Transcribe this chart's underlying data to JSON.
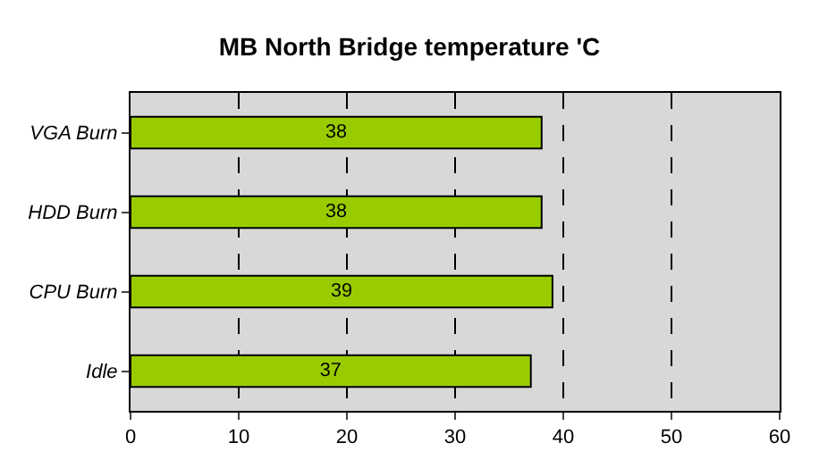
{
  "chart_data": {
    "type": "bar",
    "orientation": "horizontal",
    "title": "MB North Bridge temperature 'C",
    "categories": [
      "VGA Burn",
      "HDD Burn",
      "CPU Burn",
      "Idle"
    ],
    "values": [
      38,
      38,
      39,
      37
    ],
    "color": "#99cc00",
    "xlim": [
      0,
      60
    ],
    "xticks": [
      0,
      10,
      20,
      30,
      40,
      50,
      60
    ],
    "grid": "x",
    "data_labels": true
  }
}
